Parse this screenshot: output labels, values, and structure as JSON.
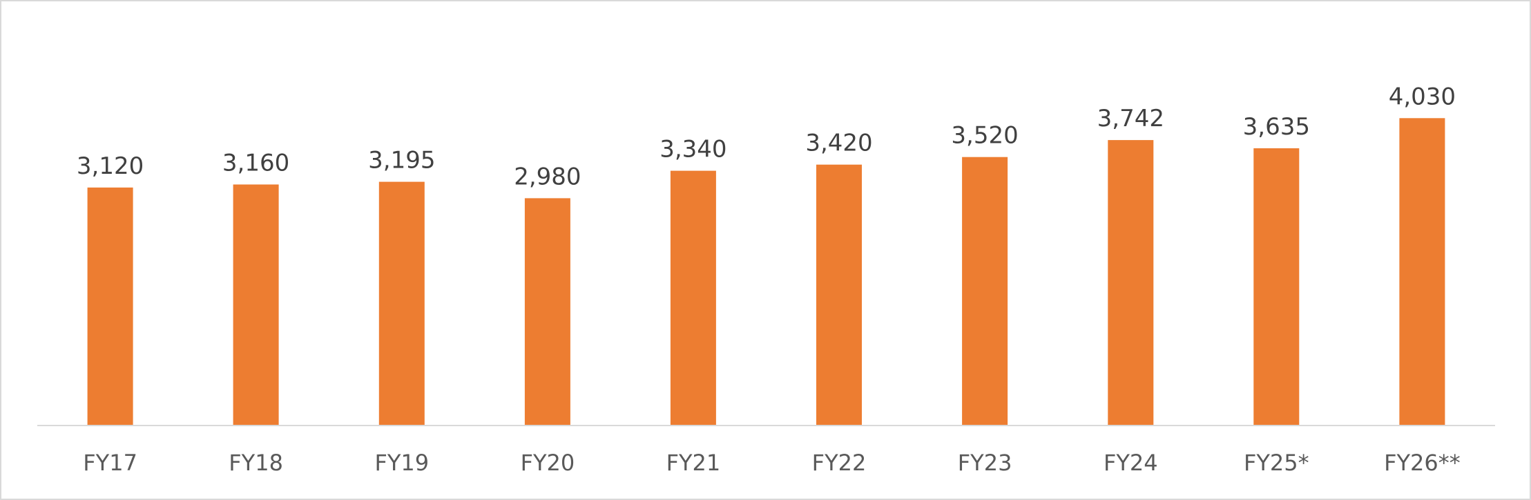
{
  "chart_data": {
    "type": "bar",
    "title": "",
    "xlabel": "",
    "ylabel": "",
    "categories": [
      "FY17",
      "FY18",
      "FY19",
      "FY20",
      "FY21",
      "FY22",
      "FY23",
      "FY24",
      "FY25*",
      "FY26**"
    ],
    "values": [
      3120,
      3160,
      3195,
      2980,
      3340,
      3420,
      3520,
      3742,
      3635,
      4030
    ],
    "value_labels": [
      "3,120",
      "3,160",
      "3,195",
      "2,980",
      "3,340",
      "3,420",
      "3,520",
      "3,742",
      "3,635",
      "4,030"
    ],
    "ylim": [
      0,
      4400
    ],
    "grid": false,
    "legend": "none",
    "bar_color": "#ED7D31",
    "axis_color": "#d9d9d9"
  }
}
